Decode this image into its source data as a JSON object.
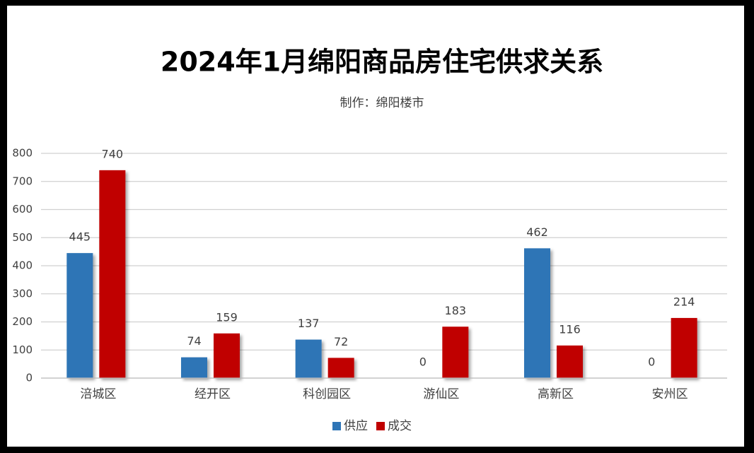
{
  "chart_data": {
    "type": "bar",
    "title": "2024年1月绵阳商品房住宅供求关系",
    "subtitle": "制作：绵阳楼市",
    "categories": [
      "涪城区",
      "经开区",
      "科创园区",
      "游仙区",
      "高新区",
      "安州区"
    ],
    "series": [
      {
        "name": "供应",
        "color": "#2e75b6",
        "values": [
          445,
          74,
          137,
          0,
          462,
          0
        ]
      },
      {
        "name": "成交",
        "color": "#c00000",
        "values": [
          740,
          159,
          72,
          183,
          116,
          214
        ]
      }
    ],
    "ylim": [
      0,
      800
    ],
    "yticks": [
      0,
      100,
      200,
      300,
      400,
      500,
      600,
      700,
      800
    ],
    "grid": true,
    "legend": "bottom"
  }
}
